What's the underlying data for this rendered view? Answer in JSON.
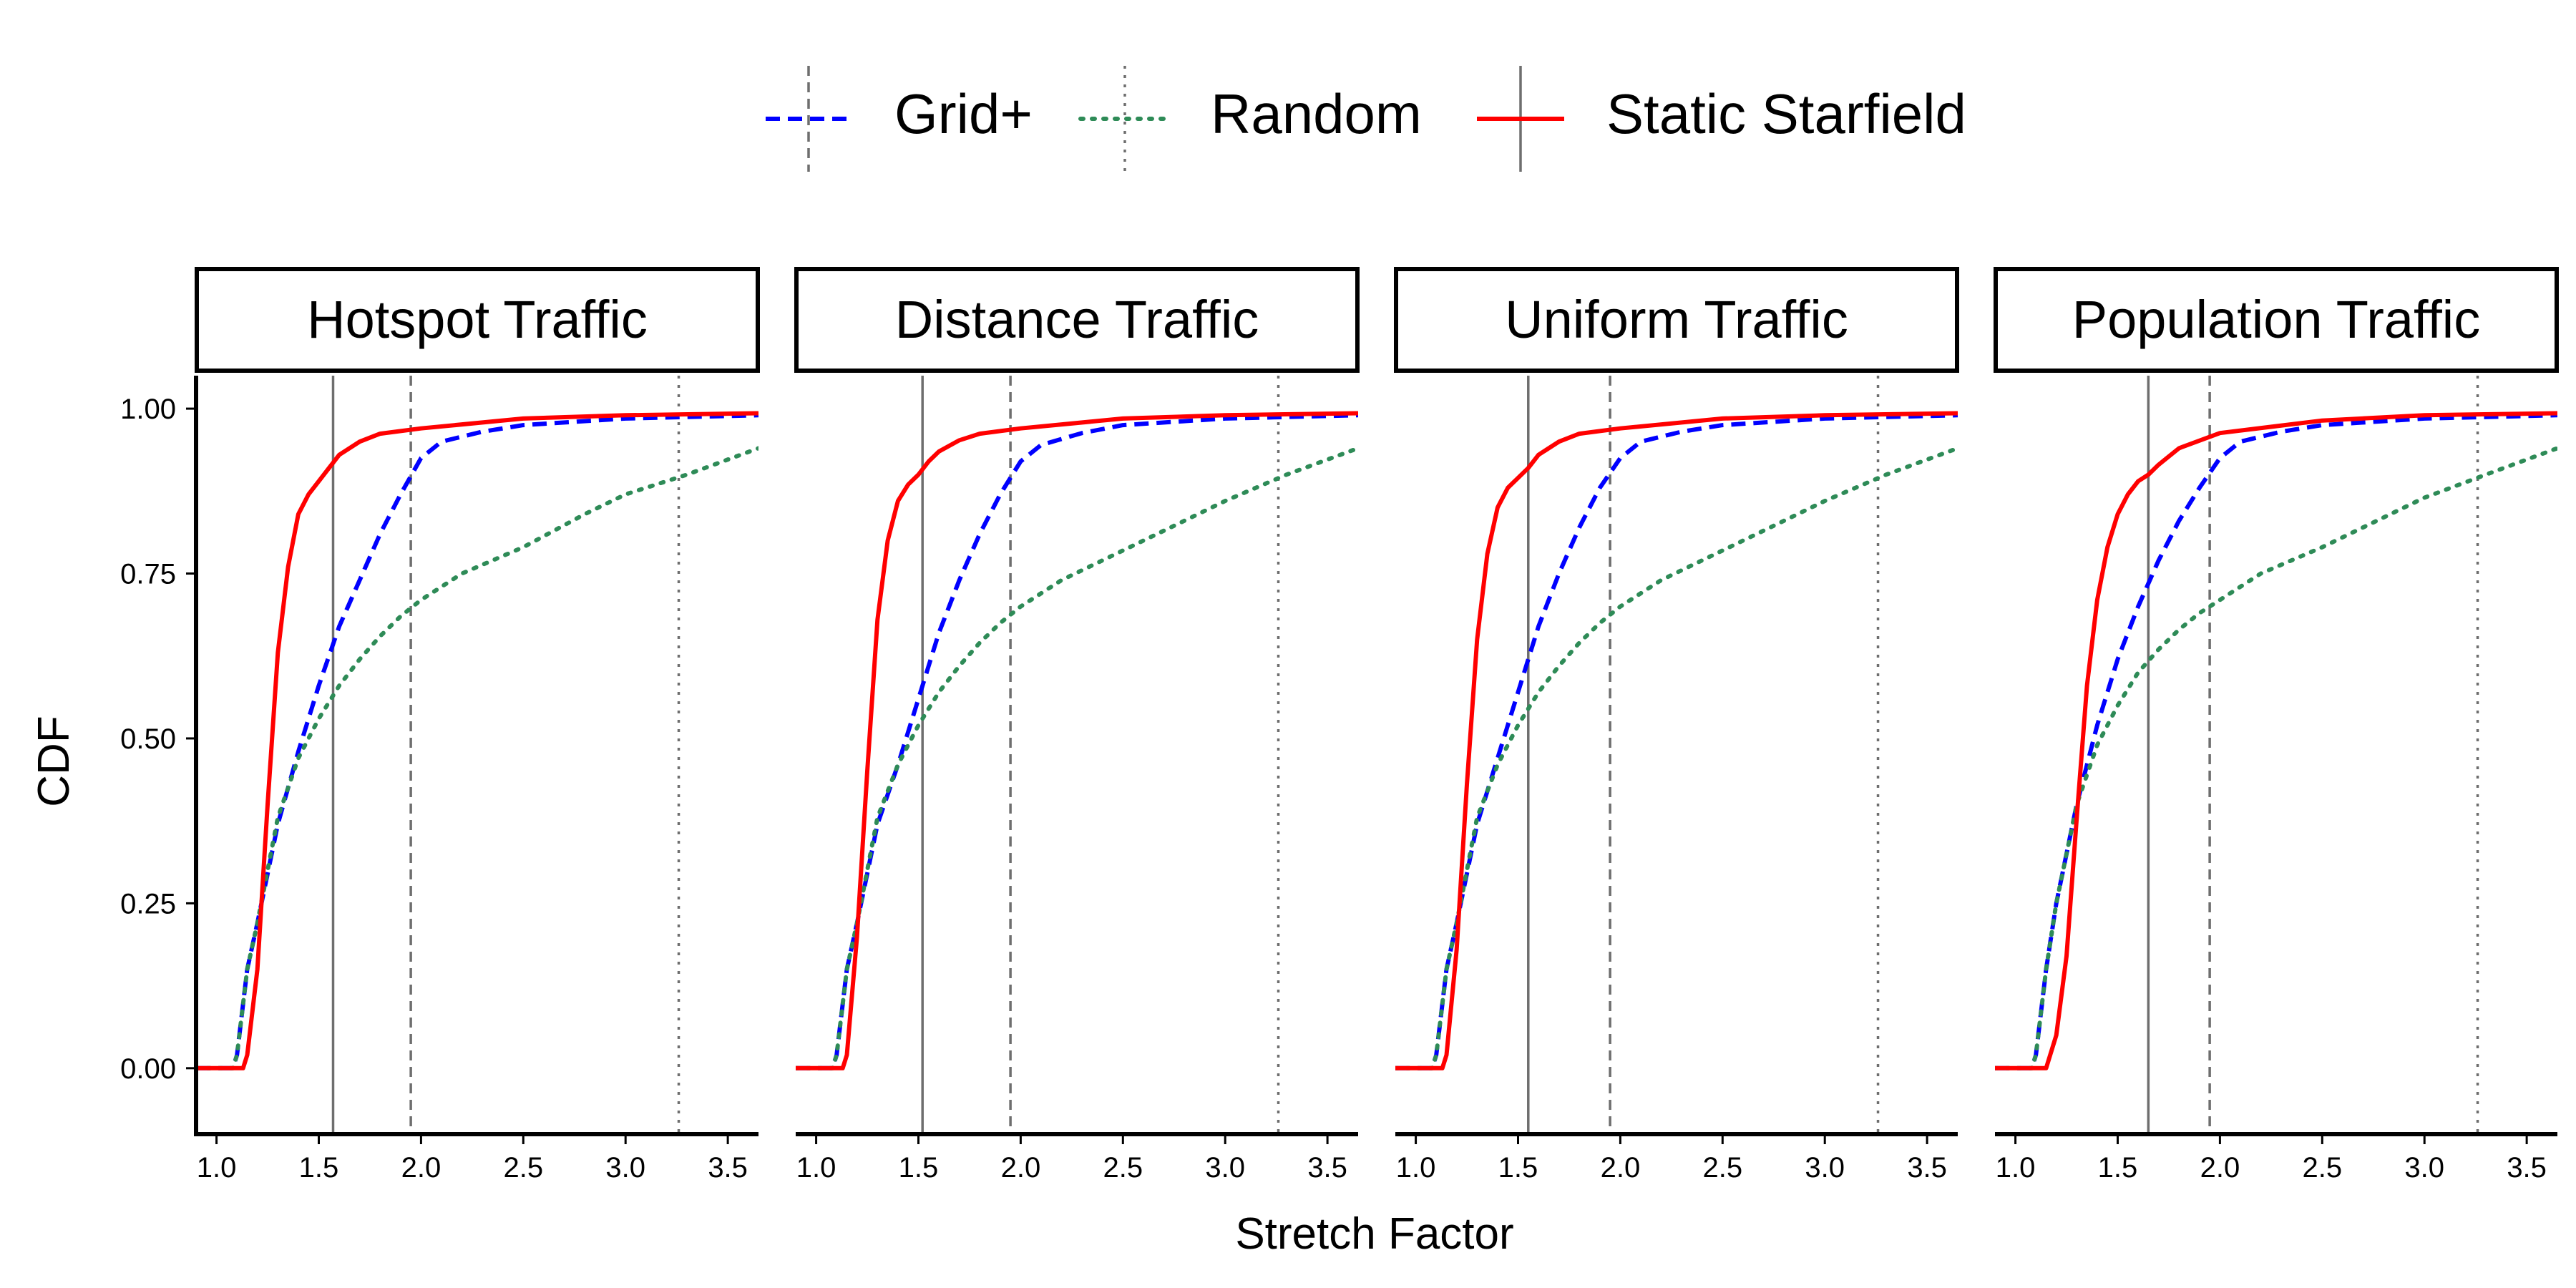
{
  "chart_data": {
    "type": "line",
    "title": "",
    "xlabel": "Stretch Factor",
    "ylabel": "CDF",
    "xlim": [
      0.9,
      3.65
    ],
    "ylim": [
      -0.1,
      1.05
    ],
    "x_ticks": [
      1.0,
      1.5,
      2.0,
      2.5,
      3.0,
      3.5
    ],
    "x_tick_labels": [
      "1.0",
      "1.5",
      "2.0",
      "2.5",
      "3.0",
      "3.5"
    ],
    "y_ticks": [
      0.0,
      0.25,
      0.5,
      0.75,
      1.0
    ],
    "y_tick_labels": [
      "0.00",
      "0.25",
      "0.50",
      "0.75",
      "1.00"
    ],
    "grid": false,
    "legend_position": "top",
    "legend": [
      {
        "name": "Grid+",
        "color": "#0000ff",
        "style": "dashed",
        "reference_color": "#6e6e6e"
      },
      {
        "name": "Random",
        "color": "#2e8b57",
        "style": "dotted",
        "reference_color": "#6e6e6e"
      },
      {
        "name": "Static Starfield",
        "color": "#ff0000",
        "style": "solid",
        "reference_color": "#6e6e6e"
      }
    ],
    "panels": [
      {
        "title": "Hotspot Traffic",
        "reference_lines": {
          "Static Starfield": 1.57,
          "Grid+": 1.95,
          "Random": 3.26
        },
        "series": [
          {
            "name": "Grid+",
            "x": [
              0.9,
              1.08,
              1.1,
              1.15,
              1.2,
              1.3,
              1.4,
              1.5,
              1.6,
              1.7,
              1.8,
              1.9,
              2.0,
              2.1,
              2.3,
              2.5,
              3.0,
              3.65
            ],
            "y": [
              0.0,
              0.0,
              0.02,
              0.15,
              0.22,
              0.37,
              0.48,
              0.58,
              0.67,
              0.74,
              0.81,
              0.87,
              0.925,
              0.95,
              0.965,
              0.975,
              0.985,
              0.99
            ]
          },
          {
            "name": "Random",
            "x": [
              0.9,
              1.08,
              1.1,
              1.15,
              1.2,
              1.3,
              1.4,
              1.5,
              1.6,
              1.7,
              1.8,
              1.9,
              2.0,
              2.2,
              2.5,
              2.8,
              3.0,
              3.3,
              3.65
            ],
            "y": [
              0.0,
              0.0,
              0.02,
              0.15,
              0.22,
              0.38,
              0.47,
              0.53,
              0.58,
              0.62,
              0.655,
              0.685,
              0.71,
              0.75,
              0.79,
              0.84,
              0.87,
              0.9,
              0.94
            ]
          },
          {
            "name": "Static Starfield",
            "x": [
              0.9,
              1.13,
              1.15,
              1.2,
              1.25,
              1.3,
              1.35,
              1.4,
              1.45,
              1.5,
              1.55,
              1.6,
              1.7,
              1.8,
              2.0,
              2.5,
              3.0,
              3.65
            ],
            "y": [
              0.0,
              0.0,
              0.02,
              0.15,
              0.4,
              0.63,
              0.76,
              0.84,
              0.87,
              0.89,
              0.91,
              0.93,
              0.95,
              0.962,
              0.97,
              0.985,
              0.99,
              0.993
            ]
          }
        ]
      },
      {
        "title": "Distance Traffic",
        "reference_lines": {
          "Static Starfield": 1.52,
          "Grid+": 1.95,
          "Random": 3.26
        },
        "series": [
          {
            "name": "Grid+",
            "x": [
              0.9,
              1.08,
              1.1,
              1.15,
              1.2,
              1.3,
              1.4,
              1.5,
              1.6,
              1.7,
              1.8,
              1.9,
              2.0,
              2.1,
              2.3,
              2.5,
              3.0,
              3.65
            ],
            "y": [
              0.0,
              0.0,
              0.02,
              0.15,
              0.22,
              0.37,
              0.46,
              0.56,
              0.66,
              0.74,
              0.81,
              0.87,
              0.92,
              0.945,
              0.963,
              0.975,
              0.985,
              0.99
            ]
          },
          {
            "name": "Random",
            "x": [
              0.9,
              1.08,
              1.1,
              1.15,
              1.2,
              1.3,
              1.4,
              1.5,
              1.6,
              1.7,
              1.8,
              1.9,
              2.0,
              2.2,
              2.5,
              2.8,
              3.0,
              3.3,
              3.65
            ],
            "y": [
              0.0,
              0.0,
              0.02,
              0.15,
              0.22,
              0.38,
              0.46,
              0.52,
              0.57,
              0.61,
              0.645,
              0.675,
              0.7,
              0.74,
              0.785,
              0.83,
              0.86,
              0.9,
              0.94
            ]
          },
          {
            "name": "Static Starfield",
            "x": [
              0.9,
              1.13,
              1.15,
              1.2,
              1.25,
              1.3,
              1.35,
              1.4,
              1.45,
              1.5,
              1.55,
              1.6,
              1.7,
              1.8,
              2.0,
              2.5,
              3.0,
              3.65
            ],
            "y": [
              0.0,
              0.0,
              0.02,
              0.2,
              0.45,
              0.68,
              0.8,
              0.86,
              0.885,
              0.9,
              0.92,
              0.935,
              0.952,
              0.962,
              0.97,
              0.985,
              0.99,
              0.993
            ]
          }
        ]
      },
      {
        "title": "Uniform Traffic",
        "reference_lines": {
          "Static Starfield": 1.55,
          "Grid+": 1.95,
          "Random": 3.26
        },
        "series": [
          {
            "name": "Grid+",
            "x": [
              0.9,
              1.08,
              1.1,
              1.15,
              1.2,
              1.3,
              1.4,
              1.5,
              1.6,
              1.7,
              1.8,
              1.9,
              2.0,
              2.1,
              2.3,
              2.5,
              3.0,
              3.65
            ],
            "y": [
              0.0,
              0.0,
              0.02,
              0.15,
              0.22,
              0.37,
              0.47,
              0.57,
              0.67,
              0.75,
              0.82,
              0.88,
              0.925,
              0.95,
              0.965,
              0.975,
              0.985,
              0.99
            ]
          },
          {
            "name": "Random",
            "x": [
              0.9,
              1.08,
              1.1,
              1.15,
              1.2,
              1.3,
              1.4,
              1.5,
              1.6,
              1.7,
              1.8,
              1.9,
              2.0,
              2.2,
              2.5,
              2.8,
              3.0,
              3.3,
              3.65
            ],
            "y": [
              0.0,
              0.0,
              0.02,
              0.15,
              0.22,
              0.38,
              0.46,
              0.52,
              0.57,
              0.61,
              0.645,
              0.675,
              0.7,
              0.74,
              0.785,
              0.83,
              0.86,
              0.9,
              0.94
            ]
          },
          {
            "name": "Static Starfield",
            "x": [
              0.9,
              1.13,
              1.15,
              1.2,
              1.25,
              1.3,
              1.35,
              1.4,
              1.45,
              1.5,
              1.55,
              1.6,
              1.7,
              1.8,
              2.0,
              2.5,
              3.0,
              3.65
            ],
            "y": [
              0.0,
              0.0,
              0.02,
              0.18,
              0.43,
              0.65,
              0.78,
              0.85,
              0.88,
              0.895,
              0.91,
              0.93,
              0.95,
              0.962,
              0.97,
              0.985,
              0.99,
              0.993
            ]
          }
        ]
      },
      {
        "title": "Population Traffic",
        "reference_lines": {
          "Static Starfield": 1.65,
          "Grid+": 1.95,
          "Random": 3.26
        },
        "series": [
          {
            "name": "Grid+",
            "x": [
              0.9,
              1.08,
              1.1,
              1.15,
              1.2,
              1.3,
              1.4,
              1.5,
              1.6,
              1.7,
              1.8,
              1.9,
              2.0,
              2.1,
              2.3,
              2.5,
              3.0,
              3.65
            ],
            "y": [
              0.0,
              0.0,
              0.02,
              0.15,
              0.25,
              0.4,
              0.52,
              0.62,
              0.7,
              0.77,
              0.83,
              0.88,
              0.925,
              0.95,
              0.965,
              0.975,
              0.985,
              0.99
            ]
          },
          {
            "name": "Random",
            "x": [
              0.9,
              1.08,
              1.1,
              1.15,
              1.2,
              1.3,
              1.4,
              1.5,
              1.6,
              1.7,
              1.8,
              1.9,
              2.0,
              2.2,
              2.5,
              2.8,
              3.0,
              3.3,
              3.65
            ],
            "y": [
              0.0,
              0.0,
              0.02,
              0.15,
              0.25,
              0.4,
              0.49,
              0.55,
              0.6,
              0.635,
              0.665,
              0.69,
              0.71,
              0.75,
              0.79,
              0.835,
              0.865,
              0.9,
              0.94
            ]
          },
          {
            "name": "Static Starfield",
            "x": [
              0.9,
              1.15,
              1.2,
              1.25,
              1.3,
              1.35,
              1.4,
              1.45,
              1.5,
              1.55,
              1.6,
              1.65,
              1.7,
              1.8,
              2.0,
              2.5,
              3.0,
              3.65
            ],
            "y": [
              0.0,
              0.0,
              0.05,
              0.17,
              0.38,
              0.58,
              0.71,
              0.79,
              0.84,
              0.87,
              0.89,
              0.9,
              0.915,
              0.94,
              0.963,
              0.982,
              0.99,
              0.993
            ]
          }
        ]
      }
    ]
  }
}
